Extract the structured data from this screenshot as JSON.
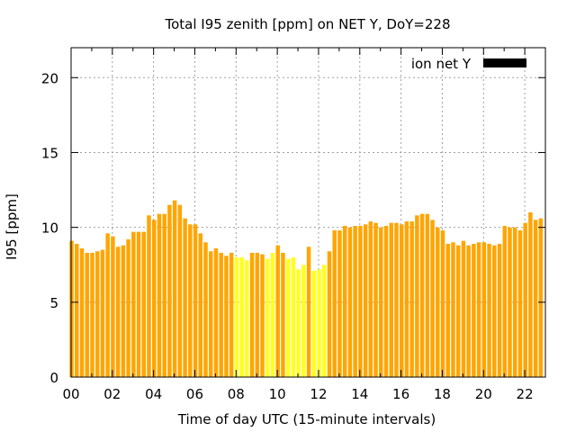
{
  "chart_data": {
    "type": "bar",
    "title": "Total I95 zenith [ppm] on NET Y, DoY=228",
    "xlabel": "Time of day UTC (15-minute intervals)",
    "ylabel": "I95 [ppm]",
    "xlim": [
      0,
      23
    ],
    "ylim": [
      0,
      22
    ],
    "xticks": [
      "00",
      "02",
      "04",
      "06",
      "08",
      "10",
      "12",
      "14",
      "16",
      "18",
      "20",
      "22"
    ],
    "yticks": [
      0,
      5,
      10,
      15,
      20
    ],
    "grid": true,
    "legend": {
      "position": "top-right",
      "label": "ion net Y",
      "color": "#000000"
    },
    "colors": {
      "normal": "#FFA500",
      "highlight": "#FFFF20"
    },
    "values": [
      9.1,
      8.9,
      8.6,
      8.3,
      8.3,
      8.4,
      8.5,
      9.6,
      9.4,
      8.7,
      8.8,
      9.2,
      9.7,
      9.7,
      9.7,
      10.8,
      10.5,
      10.9,
      10.9,
      11.5,
      11.8,
      11.5,
      10.6,
      10.2,
      10.2,
      9.6,
      9.0,
      8.4,
      8.6,
      8.3,
      8.1,
      8.3,
      8.0,
      8.0,
      7.8,
      8.3,
      8.3,
      8.2,
      7.9,
      8.3,
      8.8,
      8.3,
      7.9,
      8.0,
      7.2,
      7.5,
      8.7,
      7.1,
      7.2,
      7.5,
      8.4,
      9.8,
      9.8,
      10.1,
      10.0,
      10.1,
      10.1,
      10.2,
      10.4,
      10.3,
      10.0,
      10.1,
      10.3,
      10.3,
      10.2,
      10.4,
      10.4,
      10.8,
      10.9,
      10.9,
      10.5,
      10.0,
      9.8,
      8.9,
      9.0,
      8.8,
      9.1,
      8.8,
      8.9,
      9.0,
      9.0,
      8.9,
      8.8,
      8.9,
      10.1,
      10.0,
      10.0,
      9.8,
      10.3,
      11.0,
      10.5,
      10.6
    ],
    "highlight": [
      false,
      false,
      false,
      false,
      false,
      false,
      false,
      false,
      false,
      false,
      false,
      false,
      false,
      false,
      false,
      false,
      false,
      false,
      false,
      false,
      false,
      false,
      false,
      false,
      false,
      false,
      false,
      false,
      false,
      false,
      false,
      false,
      true,
      true,
      true,
      false,
      false,
      false,
      true,
      true,
      false,
      false,
      true,
      true,
      true,
      true,
      false,
      true,
      true,
      true,
      false,
      false,
      false,
      false,
      false,
      false,
      false,
      false,
      false,
      false,
      false,
      false,
      false,
      false,
      false,
      false,
      false,
      false,
      false,
      false,
      false,
      false,
      false,
      false,
      false,
      false,
      false,
      false,
      false,
      false,
      false,
      false,
      false,
      false,
      false,
      false,
      false,
      false,
      false,
      false,
      false,
      false
    ]
  }
}
